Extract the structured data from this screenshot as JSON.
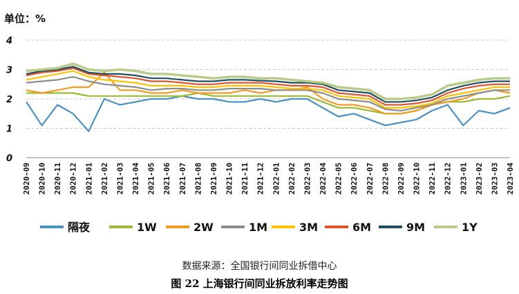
{
  "unit_label": "单位：%",
  "source": "数据来源：全国银行间同业拆借中心",
  "caption": "图 22   上海银行间同业拆放利率走势图",
  "chart_data": {
    "type": "line",
    "ylim": [
      0,
      4
    ],
    "yticks": [
      0,
      1,
      2,
      3,
      4
    ],
    "grid": true,
    "legend_position": "bottom",
    "categories": [
      "2020-09",
      "2020-10",
      "2020-11",
      "2020-12",
      "2021-01",
      "2021-02",
      "2021-03",
      "2021-04",
      "2021-05",
      "2021-06",
      "2021-07",
      "2021-08",
      "2021-09",
      "2021-10",
      "2021-11",
      "2021-12",
      "2022-01",
      "2022-02",
      "2022-03",
      "2022-04",
      "2022-05",
      "2022-06",
      "2022-07",
      "2022-08",
      "2022-09",
      "2022-10",
      "2022-11",
      "2022-12",
      "2023-01",
      "2023-02",
      "2023-03",
      "2023-04"
    ],
    "series": [
      {
        "name": "隔夜",
        "color": "#4A90C0",
        "values": [
          1.9,
          1.1,
          1.8,
          1.5,
          0.9,
          2.0,
          1.8,
          1.9,
          2.0,
          2.0,
          2.1,
          2.0,
          2.0,
          1.9,
          1.9,
          2.0,
          1.9,
          2.0,
          2.0,
          1.7,
          1.4,
          1.5,
          1.3,
          1.1,
          1.2,
          1.3,
          1.6,
          1.8,
          1.1,
          1.6,
          1.5,
          1.7
        ]
      },
      {
        "name": "1W",
        "color": "#9BBB35",
        "values": [
          2.2,
          2.2,
          2.2,
          2.2,
          2.1,
          2.1,
          2.1,
          2.1,
          2.1,
          2.1,
          2.1,
          2.2,
          2.1,
          2.1,
          2.1,
          2.1,
          2.1,
          2.1,
          2.1,
          1.9,
          1.7,
          1.7,
          1.6,
          1.5,
          1.5,
          1.6,
          1.8,
          1.9,
          1.9,
          2.0,
          2.0,
          2.1
        ]
      },
      {
        "name": "2W",
        "color": "#F29A1F",
        "values": [
          2.3,
          2.2,
          2.3,
          2.4,
          2.4,
          2.9,
          2.3,
          2.3,
          2.2,
          2.2,
          2.3,
          2.2,
          2.2,
          2.2,
          2.3,
          2.2,
          2.3,
          2.3,
          2.4,
          2.0,
          1.8,
          1.8,
          1.7,
          1.5,
          1.5,
          1.6,
          1.8,
          1.9,
          2.0,
          2.2,
          2.3,
          2.2
        ]
      },
      {
        "name": "1M",
        "color": "#8C8C8C",
        "values": [
          2.55,
          2.6,
          2.65,
          2.75,
          2.6,
          2.5,
          2.45,
          2.4,
          2.3,
          2.35,
          2.35,
          2.3,
          2.3,
          2.35,
          2.35,
          2.35,
          2.3,
          2.3,
          2.3,
          2.2,
          2.0,
          1.95,
          1.9,
          1.65,
          1.6,
          1.7,
          1.8,
          2.0,
          2.1,
          2.2,
          2.3,
          2.3
        ]
      },
      {
        "name": "3M",
        "color": "#FFC000",
        "values": [
          2.65,
          2.75,
          2.85,
          2.95,
          2.75,
          2.65,
          2.6,
          2.55,
          2.45,
          2.45,
          2.45,
          2.4,
          2.4,
          2.45,
          2.45,
          2.45,
          2.4,
          2.35,
          2.35,
          2.3,
          2.1,
          2.05,
          2.0,
          1.7,
          1.7,
          1.75,
          1.85,
          2.1,
          2.2,
          2.3,
          2.4,
          2.4
        ]
      },
      {
        "name": "6M",
        "color": "#E0522E",
        "values": [
          2.8,
          2.9,
          2.95,
          3.05,
          2.85,
          2.8,
          2.75,
          2.7,
          2.6,
          2.6,
          2.55,
          2.5,
          2.5,
          2.55,
          2.55,
          2.55,
          2.5,
          2.45,
          2.45,
          2.4,
          2.2,
          2.15,
          2.1,
          1.8,
          1.8,
          1.85,
          1.95,
          2.2,
          2.35,
          2.45,
          2.5,
          2.5
        ]
      },
      {
        "name": "9M",
        "color": "#1F4E5F",
        "values": [
          2.85,
          2.95,
          3.0,
          3.1,
          2.9,
          2.85,
          2.85,
          2.8,
          2.7,
          2.7,
          2.65,
          2.6,
          2.6,
          2.65,
          2.65,
          2.62,
          2.6,
          2.55,
          2.55,
          2.5,
          2.3,
          2.25,
          2.2,
          1.9,
          1.9,
          1.95,
          2.05,
          2.3,
          2.45,
          2.55,
          2.6,
          2.6
        ]
      },
      {
        "name": "1Y",
        "color": "#B8CC8A",
        "values": [
          2.95,
          3.0,
          3.05,
          3.2,
          3.0,
          2.95,
          3.0,
          2.95,
          2.85,
          2.85,
          2.8,
          2.75,
          2.7,
          2.75,
          2.75,
          2.7,
          2.7,
          2.65,
          2.6,
          2.55,
          2.4,
          2.35,
          2.3,
          2.0,
          2.0,
          2.05,
          2.15,
          2.45,
          2.55,
          2.65,
          2.7,
          2.7
        ]
      }
    ]
  }
}
